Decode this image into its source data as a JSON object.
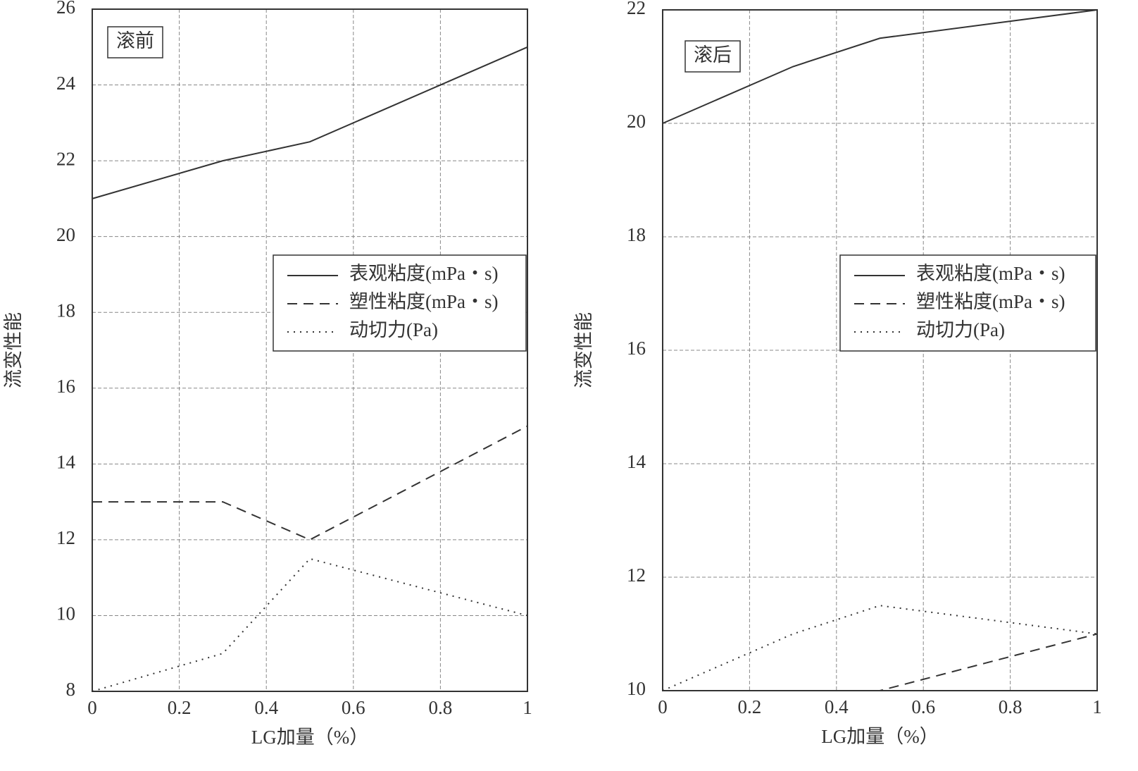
{
  "chart_data": [
    {
      "type": "line",
      "annotation": "滚前",
      "xlabel": "LG加量（%）",
      "ylabel": "流变性能",
      "x": [
        0,
        0.3,
        0.5,
        0.8,
        1
      ],
      "series": [
        {
          "name": "表观粘度(mPa・s)",
          "color": "#333333",
          "linestyle": "solid",
          "values": [
            21,
            22,
            22.5,
            24,
            25
          ]
        },
        {
          "name": "塑性粘度(mPa・s)",
          "color": "#333333",
          "linestyle": "dashed",
          "values": [
            13,
            13,
            12,
            13.8,
            15
          ]
        },
        {
          "name": "动切力(Pa)",
          "color": "#333333",
          "linestyle": "dotted",
          "values": [
            8,
            9,
            11.5,
            10.6,
            10
          ]
        }
      ],
      "xlim": [
        0,
        1
      ],
      "xticks": [
        0,
        0.2,
        0.4,
        0.6,
        0.8,
        1
      ],
      "ylim": [
        8,
        26
      ],
      "yticks": [
        8,
        10,
        12,
        14,
        16,
        18,
        20,
        22,
        24,
        26
      ],
      "grid": true,
      "legend": "right"
    },
    {
      "type": "line",
      "annotation": "滚后",
      "xlabel": "LG加量（%）",
      "ylabel": "流变性能",
      "x": [
        0,
        0.3,
        0.5,
        0.8,
        1
      ],
      "series": [
        {
          "name": "表观粘度(mPa・s)",
          "color": "#333333",
          "linestyle": "solid",
          "values": [
            20,
            21,
            21.5,
            21.8,
            22
          ]
        },
        {
          "name": "塑性粘度(mPa・s)",
          "color": "#333333",
          "linestyle": "dashed",
          "values": [
            10,
            10,
            10,
            10.6,
            11
          ]
        },
        {
          "name": "动切力(Pa)",
          "color": "#333333",
          "linestyle": "dotted",
          "values": [
            10,
            11,
            11.5,
            11.2,
            11
          ]
        }
      ],
      "xlim": [
        0,
        1
      ],
      "xticks": [
        0,
        0.2,
        0.4,
        0.6,
        0.8,
        1
      ],
      "ylim": [
        10,
        22
      ],
      "yticks": [
        10,
        12,
        14,
        16,
        18,
        20,
        22
      ],
      "grid": true,
      "legend": "right"
    }
  ]
}
